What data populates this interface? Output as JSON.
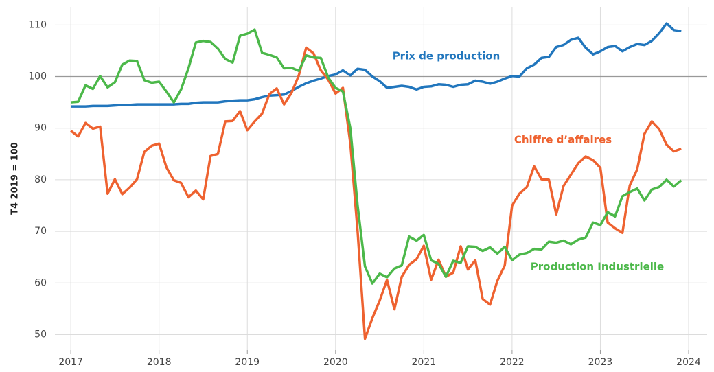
{
  "chart_data": {
    "type": "line",
    "y_label": "T4 2019 = 100",
    "x": [
      2017,
      2017.083,
      2017.167,
      2017.25,
      2017.333,
      2017.417,
      2017.5,
      2017.583,
      2017.667,
      2017.75,
      2017.833,
      2017.917,
      2018,
      2018.083,
      2018.167,
      2018.25,
      2018.333,
      2018.417,
      2018.5,
      2018.583,
      2018.667,
      2018.75,
      2018.833,
      2018.917,
      2019,
      2019.083,
      2019.167,
      2019.25,
      2019.333,
      2019.417,
      2019.5,
      2019.583,
      2019.667,
      2019.75,
      2019.833,
      2019.917,
      2020,
      2020.083,
      2020.167,
      2020.25,
      2020.333,
      2020.417,
      2020.5,
      2020.583,
      2020.667,
      2020.75,
      2020.833,
      2020.917,
      2021,
      2021.083,
      2021.167,
      2021.25,
      2021.333,
      2021.417,
      2021.5,
      2021.583,
      2021.667,
      2021.75,
      2021.833,
      2021.917,
      2022,
      2022.083,
      2022.167,
      2022.25,
      2022.333,
      2022.417,
      2022.5,
      2022.583,
      2022.667,
      2022.75,
      2022.833,
      2022.917,
      2023,
      2023.083,
      2023.167,
      2023.25,
      2023.333,
      2023.417,
      2023.5,
      2023.583,
      2023.667,
      2023.75,
      2023.833,
      2023.917
    ],
    "series": [
      {
        "name": "Prix de production",
        "color": "#2176bd",
        "values": [
          94.2,
          94.2,
          94.2,
          94.3,
          94.3,
          94.3,
          94.4,
          94.5,
          94.5,
          94.6,
          94.6,
          94.6,
          94.6,
          94.6,
          94.6,
          94.7,
          94.7,
          94.9,
          95,
          95,
          95,
          95.2,
          95.3,
          95.4,
          95.4,
          95.6,
          96,
          96.3,
          96.4,
          96.5,
          97.2,
          98,
          98.7,
          99.2,
          99.6,
          100.1,
          100.4,
          101.2,
          100.2,
          101.5,
          101.3,
          100,
          99.1,
          97.8,
          98,
          98.2,
          98,
          97.5,
          98,
          98.1,
          98.5,
          98.4,
          98,
          98.4,
          98.5,
          99.2,
          99,
          98.6,
          99,
          99.6,
          100.1,
          100,
          101.6,
          102.3,
          103.6,
          103.8,
          105.7,
          106.1,
          107.1,
          107.5,
          105.6,
          104.3,
          104.9,
          105.7,
          105.9,
          104.9,
          105.7,
          106.3,
          106.1,
          106.9,
          108.4,
          110.3,
          109,
          108.8
        ]
      },
      {
        "name": "Chiffre d’affaires",
        "color": "#ee6230",
        "values": [
          89.5,
          88.4,
          91,
          89.9,
          90.3,
          77.3,
          80.1,
          77.2,
          78.5,
          80.1,
          85.4,
          86.6,
          87,
          82.4,
          79.9,
          79.4,
          76.6,
          77.9,
          76.2,
          84.6,
          85,
          91.3,
          91.4,
          93.3,
          89.6,
          91.3,
          92.8,
          96.6,
          97.7,
          94.6,
          96.8,
          100.2,
          105.6,
          104.5,
          101.2,
          99.4,
          96.7,
          97.8,
          87,
          70,
          49.2,
          53.2,
          56.6,
          60.6,
          54.9,
          61.2,
          63.5,
          64.6,
          67.2,
          60.6,
          64.5,
          61.2,
          62,
          67.1,
          62.6,
          64.4,
          56.9,
          55.8,
          60.4,
          63.4,
          75,
          77.3,
          78.6,
          82.6,
          80.1,
          80,
          73.3,
          78.8,
          81,
          83.2,
          84.5,
          83.8,
          82.3,
          71.7,
          70.6,
          69.7,
          78.9,
          82,
          88.9,
          91.3,
          89.8,
          86.8,
          85.5,
          86
        ]
      },
      {
        "name": "Production Industrielle",
        "color": "#4cb84a",
        "values": [
          95,
          95.1,
          98.3,
          97.6,
          100.1,
          97.9,
          98.9,
          102.3,
          103.1,
          103,
          99.3,
          98.8,
          99,
          97.1,
          95,
          97.5,
          101.6,
          106.6,
          106.9,
          106.7,
          105.4,
          103.4,
          102.7,
          107.9,
          108.3,
          109.1,
          104.6,
          104.2,
          103.7,
          101.6,
          101.7,
          101.1,
          104.1,
          103.7,
          103.6,
          99.8,
          97.8,
          97.1,
          90,
          75,
          63.2,
          59.9,
          61.8,
          61.1,
          62.8,
          63.4,
          69,
          68.2,
          69.3,
          64.4,
          63.7,
          61.2,
          64.3,
          63.9,
          67.1,
          67,
          66.2,
          66.9,
          65.7,
          67,
          64.4,
          65.5,
          65.8,
          66.6,
          66.5,
          68,
          67.8,
          68.2,
          67.5,
          68.4,
          68.8,
          71.7,
          71.2,
          73.7,
          72.9,
          76.8,
          77.6,
          78.3,
          76,
          78.1,
          78.6,
          80,
          78.7,
          79.9
        ]
      }
    ],
    "xlim": [
      2016.82,
      2024.21
    ],
    "xticks": [
      2017,
      2018,
      2019,
      2020,
      2021,
      2022,
      2023,
      2024
    ],
    "ylim": [
      47,
      113.5
    ],
    "yticks": [
      50,
      60,
      70,
      80,
      90,
      100,
      110
    ],
    "baseline": 100,
    "grid": true
  }
}
